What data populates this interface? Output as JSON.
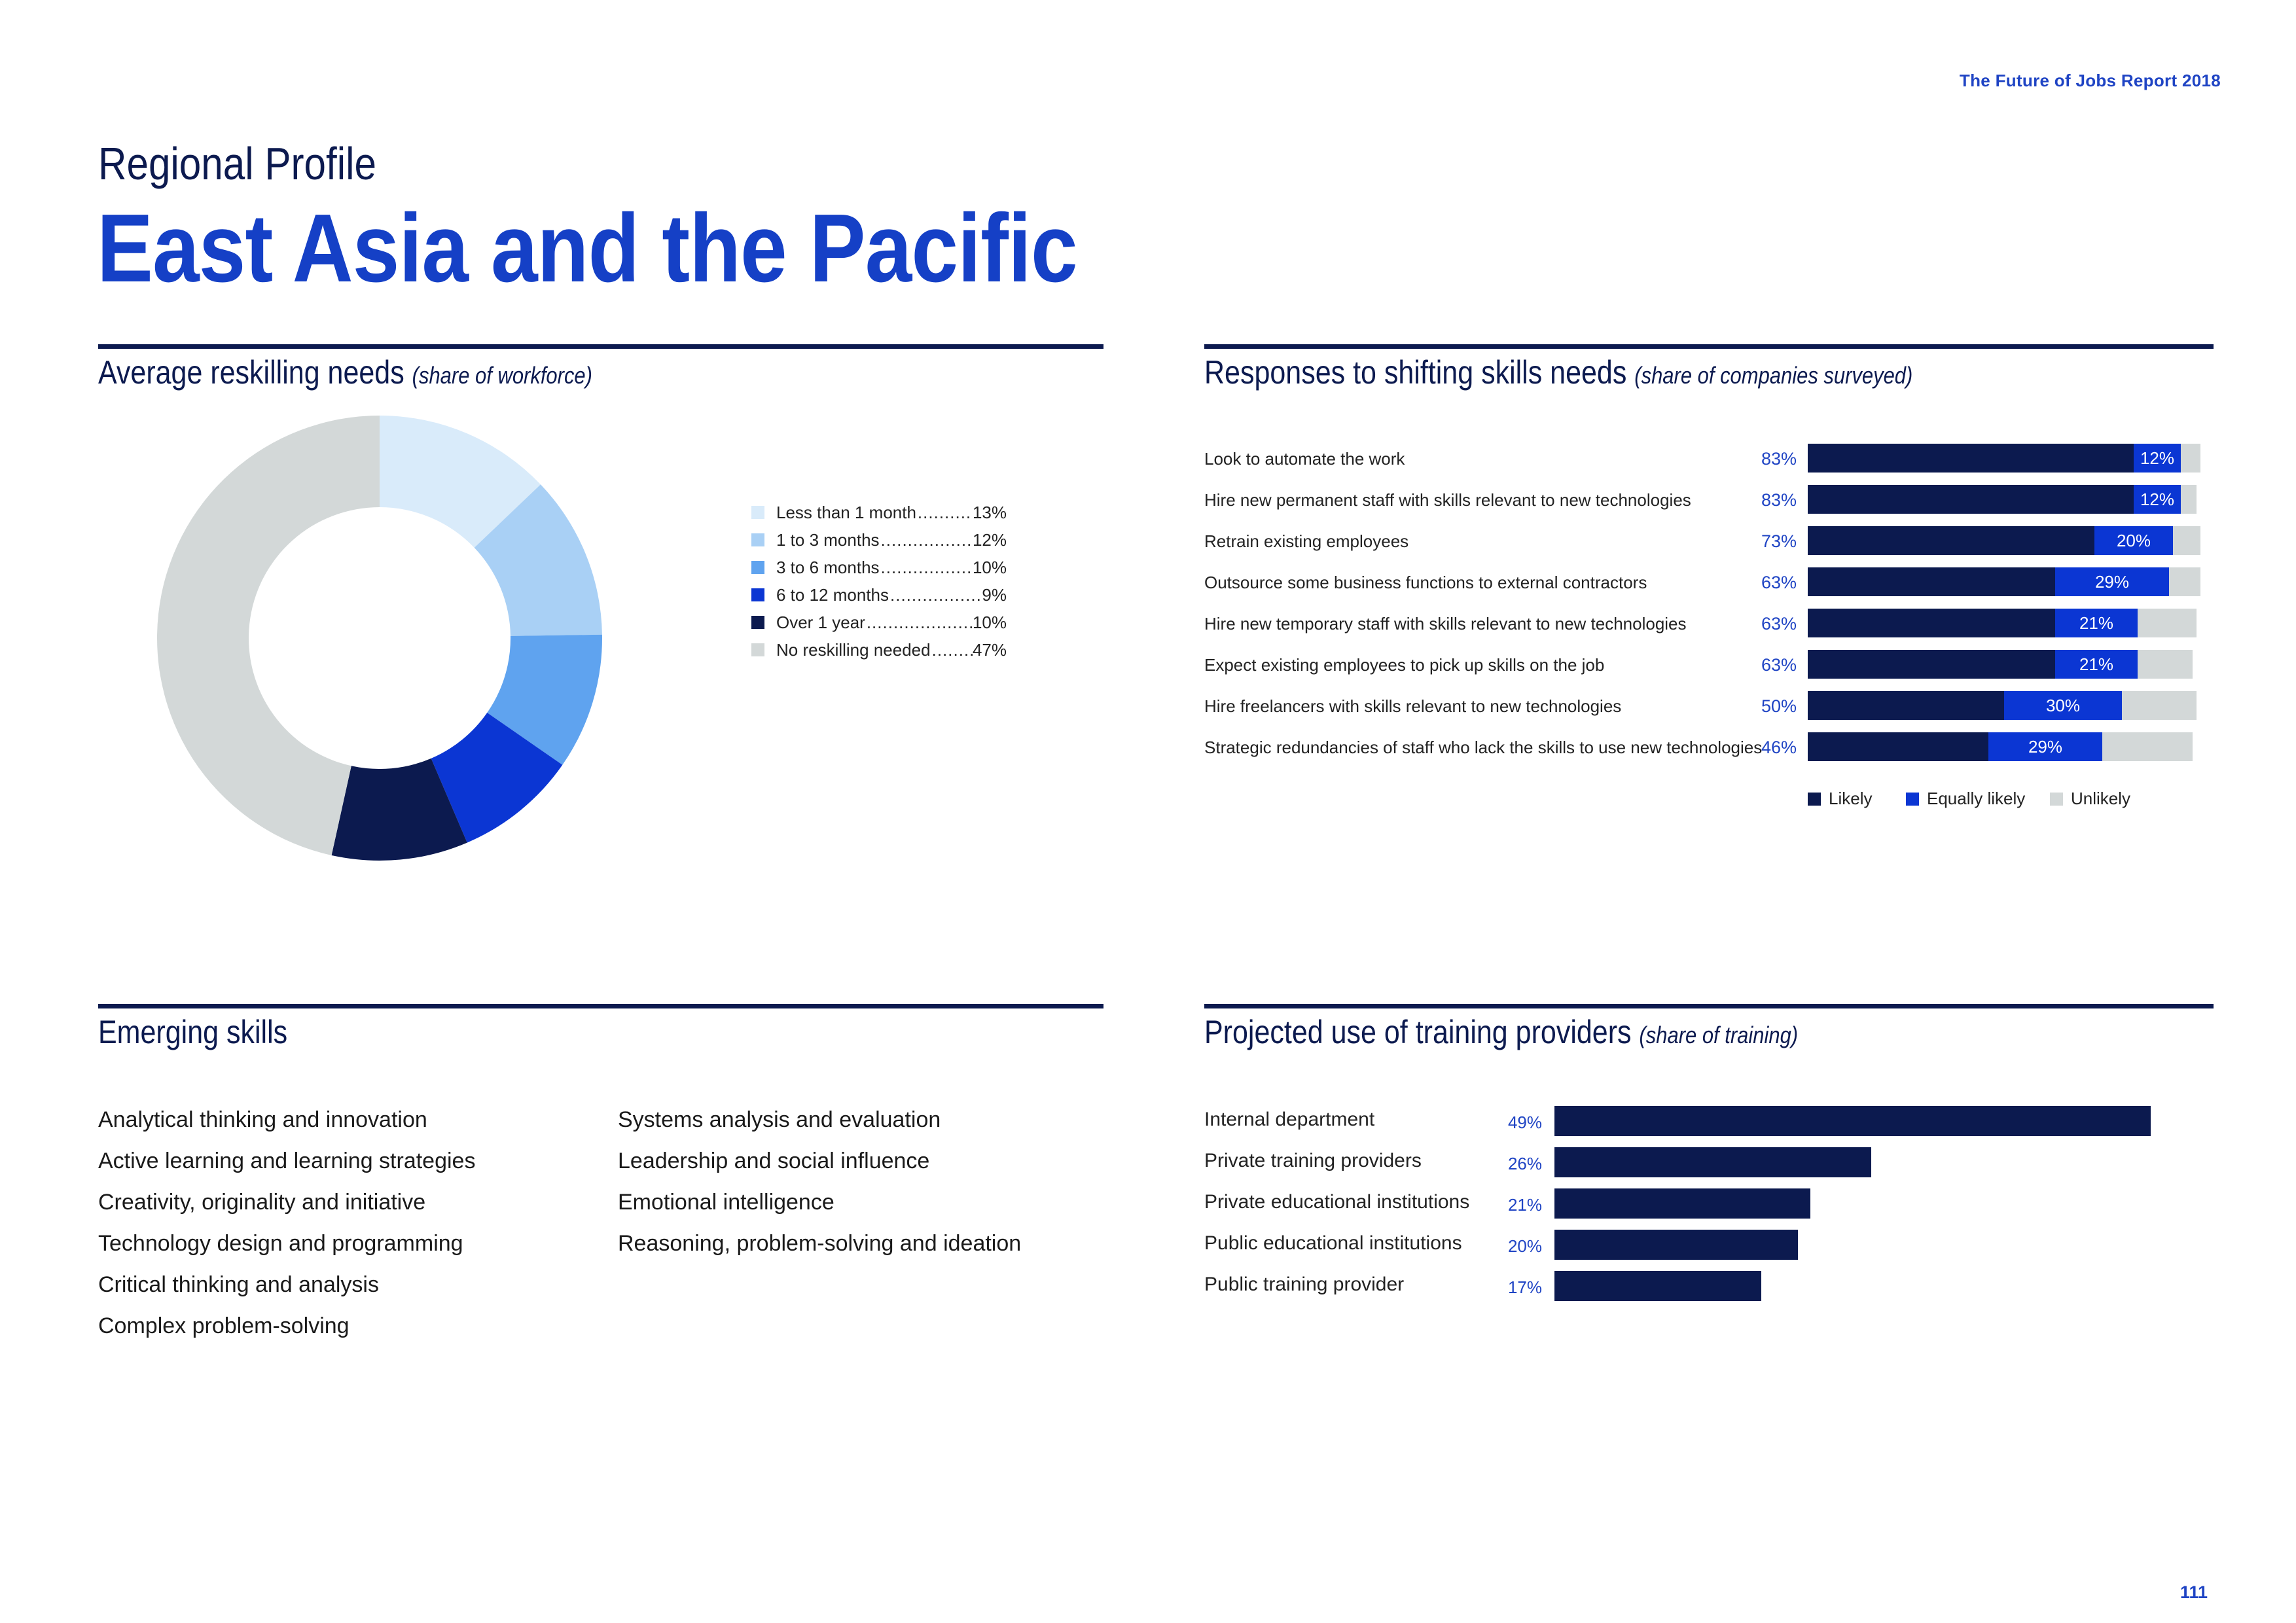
{
  "header": {
    "report_title": "The Future of Jobs Report 2018",
    "section_label": "Regional Profile",
    "region_title": "East Asia and the Pacific",
    "page_number": "111"
  },
  "colors": {
    "navy": "#0c1a4f",
    "blue": "#1540c6",
    "mid_blue": "#5fa3ef",
    "light_blue": "#a9d0f5",
    "pale_blue": "#d9ebfa",
    "grey": "#d3d8d8"
  },
  "reskilling": {
    "title": "Average reskilling needs",
    "subtitle": "(share of workforce)"
  },
  "responses": {
    "title": "Responses to shifting skills needs",
    "subtitle": "(share of companies surveyed)"
  },
  "emerging": {
    "title": "Emerging skills",
    "column1": [
      "Analytical thinking and innovation",
      "Active learning and learning strategies",
      "Creativity, originality and initiative",
      "Technology design and programming",
      "Critical thinking and analysis",
      "Complex problem-solving"
    ],
    "column2": [
      "Systems analysis and evaluation",
      "Leadership and social influence",
      "Emotional intelligence",
      "Reasoning, problem-solving and ideation"
    ]
  },
  "training": {
    "title": "Projected use of training providers",
    "subtitle": "(share of training)"
  },
  "chart_data": [
    {
      "type": "pie",
      "categories": [
        "Less than 1 month",
        "1 to 3 months",
        "3 to 6 months",
        "6 to 12 months",
        "Over 1 year",
        "No reskilling needed"
      ],
      "values": [
        13,
        12,
        10,
        9,
        10,
        47
      ],
      "value_labels": [
        "13%",
        "12%",
        "10%",
        "9%",
        "10%",
        "47%"
      ],
      "colors": [
        "#d9ebfa",
        "#a9d0f5",
        "#5fa3ef",
        "#0b36d3",
        "#0c1a4f",
        "#d3d8d8"
      ],
      "legend": "right"
    },
    {
      "type": "bar",
      "orientation": "horizontal",
      "stacked": true,
      "categories": [
        "Look to automate the work",
        "Hire new permanent staff with skills relevant to new technologies",
        "Retrain existing employees",
        "Outsource some business functions to external contractors",
        "Hire new temporary staff with skills relevant to new technologies",
        "Expect existing employees to pick up skills on the job",
        "Hire freelancers with skills relevant to new technologies",
        "Strategic redundancies of staff who lack the skills to use new technologies"
      ],
      "series": [
        {
          "name": "Likely",
          "values": [
            83,
            83,
            73,
            63,
            63,
            63,
            50,
            46
          ],
          "labels": [
            "83%",
            "83%",
            "73%",
            "63%",
            "63%",
            "63%",
            "50%",
            "46%"
          ],
          "color": "#0c1a4f"
        },
        {
          "name": "Equally likely",
          "values": [
            12,
            12,
            20,
            29,
            21,
            21,
            30,
            29
          ],
          "labels": [
            "12%",
            "12%",
            "20%",
            "29%",
            "21%",
            "21%",
            "30%",
            "29%"
          ],
          "color": "#0b36d3"
        },
        {
          "name": "Unlikely",
          "values": [
            5,
            4,
            7,
            8,
            15,
            14,
            19,
            23
          ],
          "color": "#d3d8d8"
        }
      ],
      "xlim": [
        0,
        100
      ],
      "legend": "bottom"
    },
    {
      "type": "bar",
      "orientation": "horizontal",
      "categories": [
        "Internal department",
        "Private training providers",
        "Private educational institutions",
        "Public educational institutions",
        "Public training provider"
      ],
      "values": [
        49,
        26,
        21,
        20,
        17
      ],
      "value_labels": [
        "49%",
        "26%",
        "21%",
        "20%",
        "17%"
      ],
      "color": "#0c1a4f",
      "xlim": [
        0,
        50
      ]
    }
  ]
}
